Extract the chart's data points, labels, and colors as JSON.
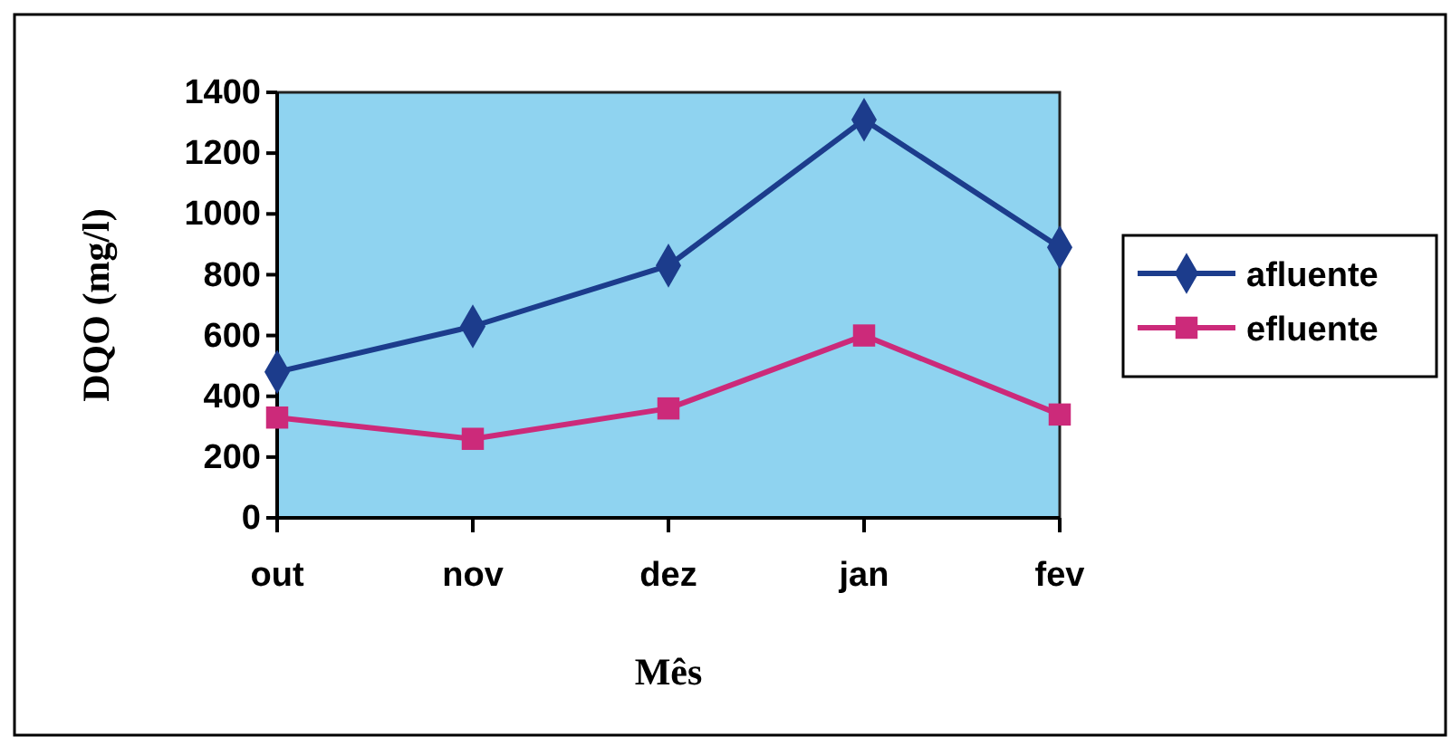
{
  "chart_data": {
    "type": "line",
    "xlabel": "Mês",
    "ylabel": "DQO (mg/l)",
    "categories": [
      "out",
      "nov",
      "dez",
      "jan",
      "fev"
    ],
    "series": [
      {
        "name": "afluente",
        "color": "#1c3c8c",
        "marker": "diamond",
        "values": [
          480,
          630,
          830,
          1310,
          890
        ]
      },
      {
        "name": "efluente",
        "color": "#cc2a7a",
        "marker": "square",
        "values": [
          330,
          260,
          360,
          600,
          340
        ]
      }
    ],
    "ylim": [
      0,
      1400
    ],
    "yticks": [
      0,
      200,
      400,
      600,
      800,
      1000,
      1200,
      1400
    ],
    "grid": false,
    "legend": "right",
    "line_style": "solid"
  }
}
